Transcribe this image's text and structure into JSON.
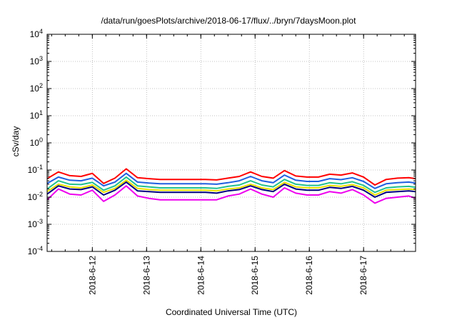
{
  "chart_data": {
    "type": "line",
    "title": "/data/run/goesPlots/archive/2018-06-17/flux/../bryn/7daysMoon.plot",
    "xlabel": "Coordinated Universal Time (UTC)",
    "ylabel": "cSv/day",
    "y_scale": "log",
    "ylim": [
      0.0001,
      10000
    ],
    "y_ticks": [
      {
        "value": 0.0001,
        "base": "10",
        "exp": "-4"
      },
      {
        "value": 0.001,
        "base": "10",
        "exp": "-3"
      },
      {
        "value": 0.01,
        "base": "10",
        "exp": "-2"
      },
      {
        "value": 0.1,
        "base": "10",
        "exp": "-1"
      },
      {
        "value": 1,
        "base": "10",
        "exp": "0"
      },
      {
        "value": 10,
        "base": "10",
        "exp": "1"
      },
      {
        "value": 100,
        "base": "10",
        "exp": "2"
      },
      {
        "value": 1000,
        "base": "10",
        "exp": "3"
      },
      {
        "value": 10000,
        "base": "10",
        "exp": "4"
      }
    ],
    "xlim": [
      "2018-06-11 04:00",
      "2018-06-17 23:00"
    ],
    "x_ticks": [
      "2018-6-12",
      "2018-6-13",
      "2018-6-14",
      "2018-6-15",
      "2018-6-16",
      "2018-6-17"
    ],
    "grid": true,
    "x": [
      "2018-06-11 04:00",
      "2018-06-11 09:00",
      "2018-06-11 14:00",
      "2018-06-11 19:00",
      "2018-06-12 00:00",
      "2018-06-12 05:00",
      "2018-06-12 10:00",
      "2018-06-12 15:00",
      "2018-06-12 20:00",
      "2018-06-13 01:00",
      "2018-06-13 06:00",
      "2018-06-13 11:00",
      "2018-06-13 16:00",
      "2018-06-13 21:00",
      "2018-06-14 02:00",
      "2018-06-14 07:00",
      "2018-06-14 12:00",
      "2018-06-14 17:00",
      "2018-06-14 22:00",
      "2018-06-15 03:00",
      "2018-06-15 08:00",
      "2018-06-15 13:00",
      "2018-06-15 18:00",
      "2018-06-15 23:00",
      "2018-06-16 04:00",
      "2018-06-16 09:00",
      "2018-06-16 14:00",
      "2018-06-16 19:00",
      "2018-06-17 00:00",
      "2018-06-17 05:00",
      "2018-06-17 10:00",
      "2018-06-17 15:00",
      "2018-06-17 20:00",
      "2018-06-17 23:00"
    ],
    "series": [
      {
        "color": "#ff0000",
        "values": [
          0.048,
          0.085,
          0.062,
          0.058,
          0.075,
          0.032,
          0.05,
          0.11,
          0.052,
          0.048,
          0.045,
          0.045,
          0.045,
          0.045,
          0.045,
          0.043,
          0.05,
          0.058,
          0.085,
          0.058,
          0.05,
          0.095,
          0.06,
          0.055,
          0.055,
          0.07,
          0.065,
          0.078,
          0.055,
          0.028,
          0.045,
          0.05,
          0.052,
          0.048
        ]
      },
      {
        "color": "#1f5fe0",
        "values": [
          0.032,
          0.055,
          0.042,
          0.04,
          0.05,
          0.026,
          0.036,
          0.075,
          0.036,
          0.033,
          0.031,
          0.031,
          0.031,
          0.031,
          0.031,
          0.03,
          0.034,
          0.04,
          0.058,
          0.04,
          0.034,
          0.065,
          0.042,
          0.038,
          0.038,
          0.048,
          0.044,
          0.052,
          0.038,
          0.021,
          0.031,
          0.034,
          0.036,
          0.033
        ]
      },
      {
        "color": "#20c090",
        "values": [
          0.02,
          0.04,
          0.03,
          0.029,
          0.035,
          0.018,
          0.026,
          0.055,
          0.026,
          0.024,
          0.022,
          0.022,
          0.022,
          0.022,
          0.022,
          0.021,
          0.025,
          0.028,
          0.04,
          0.028,
          0.024,
          0.045,
          0.03,
          0.027,
          0.027,
          0.034,
          0.031,
          0.037,
          0.027,
          0.015,
          0.022,
          0.024,
          0.025,
          0.023
        ]
      },
      {
        "color": "#e8e000",
        "values": [
          0.016,
          0.03,
          0.024,
          0.022,
          0.028,
          0.015,
          0.021,
          0.042,
          0.021,
          0.019,
          0.018,
          0.018,
          0.018,
          0.018,
          0.018,
          0.017,
          0.02,
          0.022,
          0.03,
          0.022,
          0.019,
          0.035,
          0.024,
          0.022,
          0.022,
          0.027,
          0.025,
          0.029,
          0.022,
          0.012,
          0.018,
          0.019,
          0.02,
          0.019
        ]
      },
      {
        "color": "#000080",
        "values": [
          0.013,
          0.026,
          0.02,
          0.019,
          0.024,
          0.012,
          0.018,
          0.036,
          0.017,
          0.016,
          0.015,
          0.015,
          0.015,
          0.015,
          0.015,
          0.014,
          0.017,
          0.019,
          0.026,
          0.019,
          0.016,
          0.03,
          0.02,
          0.018,
          0.018,
          0.023,
          0.021,
          0.025,
          0.018,
          0.01,
          0.015,
          0.016,
          0.017,
          0.016
        ]
      },
      {
        "color": "#ee00ee",
        "values": [
          0.008,
          0.02,
          0.013,
          0.012,
          0.018,
          0.007,
          0.012,
          0.026,
          0.011,
          0.009,
          0.008,
          0.008,
          0.008,
          0.008,
          0.008,
          0.008,
          0.011,
          0.013,
          0.02,
          0.013,
          0.01,
          0.022,
          0.014,
          0.012,
          0.012,
          0.016,
          0.014,
          0.019,
          0.012,
          0.006,
          0.009,
          0.01,
          0.011,
          0.009
        ]
      }
    ]
  }
}
